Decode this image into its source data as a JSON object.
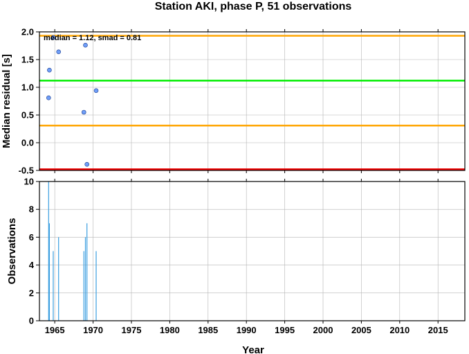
{
  "chart_data": {
    "title": "Station AKI, phase P, 51 observations",
    "xlabel": "Year",
    "xlim": [
      1963.0,
      2018.5
    ],
    "xticks": [
      1965,
      1970,
      1975,
      1980,
      1985,
      1990,
      1995,
      2000,
      2005,
      2010,
      2015
    ],
    "grid": true,
    "panels": [
      {
        "type": "scatter",
        "ylabel": "Median residual [s]",
        "ylim": [
          -0.5,
          2.0
        ],
        "yticks": [
          -0.5,
          0.0,
          0.5,
          1.0,
          1.5,
          2.0
        ],
        "ytick_labels": [
          "-0.5",
          "0.0",
          "0.5",
          "1.0",
          "1.5",
          "2.0"
        ],
        "annotation": "median = 1.12, smad = 0.81",
        "points": [
          {
            "x": 1964.2,
            "y": 0.81
          },
          {
            "x": 1964.3,
            "y": 1.31
          },
          {
            "x": 1964.8,
            "y": 1.9
          },
          {
            "x": 1965.5,
            "y": 1.64
          },
          {
            "x": 1968.8,
            "y": 0.55
          },
          {
            "x": 1969.0,
            "y": 1.76
          },
          {
            "x": 1969.2,
            "y": -0.39
          },
          {
            "x": 1970.4,
            "y": 0.94
          }
        ],
        "hlines": [
          {
            "y": 1.93,
            "color": "#ffa500"
          },
          {
            "y": 1.12,
            "color": "#00ee00"
          },
          {
            "y": 0.31,
            "color": "#ffa500"
          },
          {
            "y": -0.48,
            "color": "#ee0000"
          }
        ],
        "marker_color": "#6f9ef8"
      },
      {
        "type": "bar",
        "ylabel": "Observations",
        "ylim": [
          0,
          10
        ],
        "yticks": [
          0,
          2,
          4,
          6,
          8,
          10
        ],
        "ytick_labels": [
          "0",
          "2",
          "4",
          "6",
          "8",
          "10"
        ],
        "bar_color": "#3a9ee0",
        "bars": [
          {
            "x": 1964.2,
            "y": 10
          },
          {
            "x": 1964.3,
            "y": 7
          },
          {
            "x": 1964.8,
            "y": 5
          },
          {
            "x": 1965.5,
            "y": 6
          },
          {
            "x": 1968.8,
            "y": 5
          },
          {
            "x": 1969.0,
            "y": 6
          },
          {
            "x": 1969.2,
            "y": 7
          },
          {
            "x": 1970.4,
            "y": 5
          }
        ]
      }
    ]
  }
}
